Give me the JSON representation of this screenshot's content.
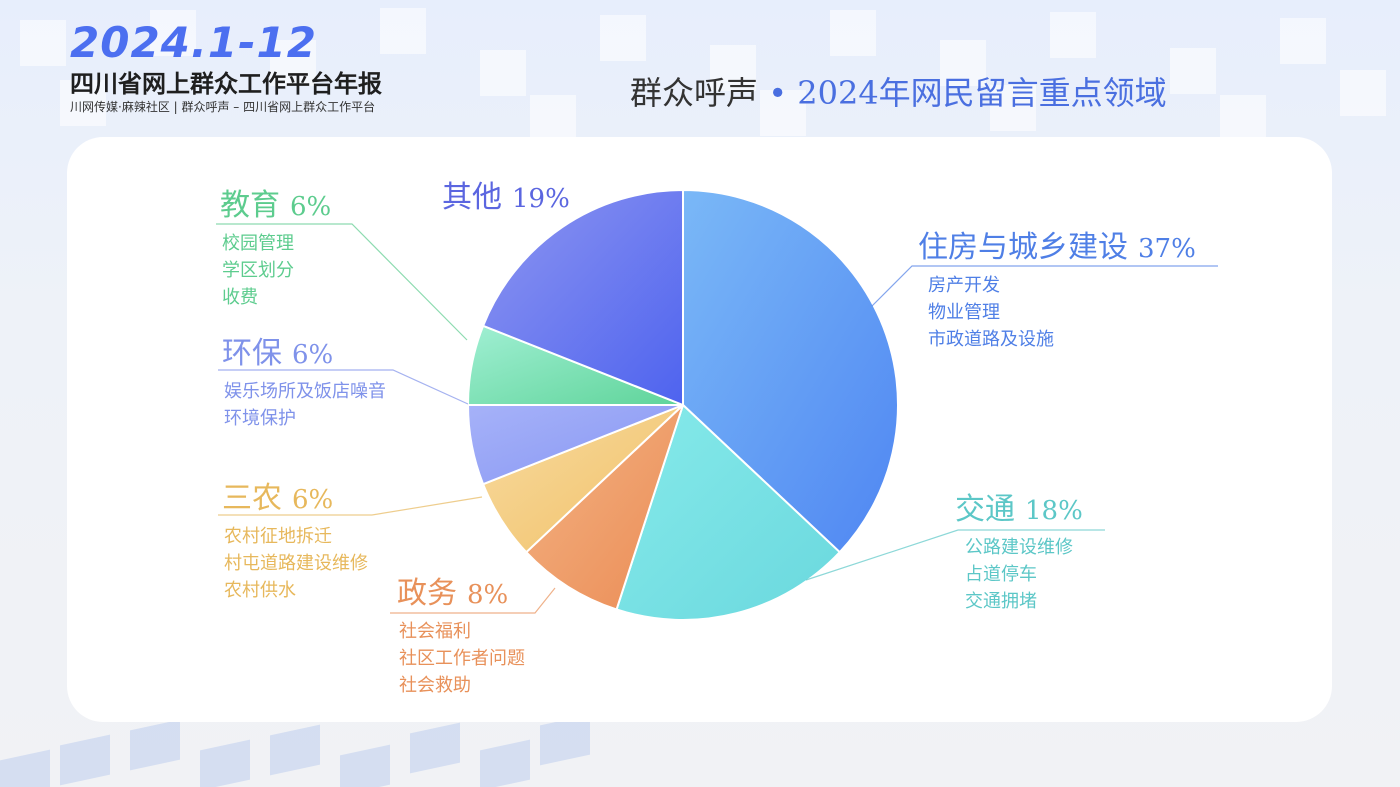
{
  "header": {
    "year": "2024.1-12",
    "report_title": "四川省网上群众工作平台年报",
    "subtitle": "川网传媒·麻辣社区 | 群众呼声 – 四川省网上群众工作平台",
    "title_prefix": "群众呼声",
    "title_dot": "•",
    "title_main": "2024年网民留言重点领域"
  },
  "colors": {
    "housing": "#4f7fe6",
    "traffic": "#5cc7c7",
    "government": "#e8915a",
    "agriculture": "#e7b85c",
    "environment": "#7f92ea",
    "education": "#5dcc8e",
    "other": "#5b66e0"
  },
  "chart_data": {
    "type": "pie",
    "title": "2024年网民留言重点领域",
    "slices": [
      {
        "label": "住房与城乡建设",
        "value": 37,
        "pct_label": "37%",
        "items": [
          "房产开发",
          "物业管理",
          "市政道路及设施"
        ]
      },
      {
        "label": "交通",
        "value": 18,
        "pct_label": "18%",
        "items": [
          "公路建设维修",
          "占道停车",
          "交通拥堵"
        ]
      },
      {
        "label": "政务",
        "value": 8,
        "pct_label": "8%",
        "items": [
          "社会福利",
          "社区工作者问题",
          "社会救助"
        ]
      },
      {
        "label": "三农",
        "value": 6,
        "pct_label": "6%",
        "items": [
          "农村征地拆迁",
          "村屯道路建设维修",
          "农村供水"
        ]
      },
      {
        "label": "环保",
        "value": 6,
        "pct_label": "6%",
        "items": [
          "娱乐场所及饭店噪音",
          "环境保护"
        ]
      },
      {
        "label": "教育",
        "value": 6,
        "pct_label": "6%",
        "items": [
          "校园管理",
          "学区划分",
          "收费"
        ]
      },
      {
        "label": "其他",
        "value": 19,
        "pct_label": "19%",
        "items": []
      }
    ]
  }
}
